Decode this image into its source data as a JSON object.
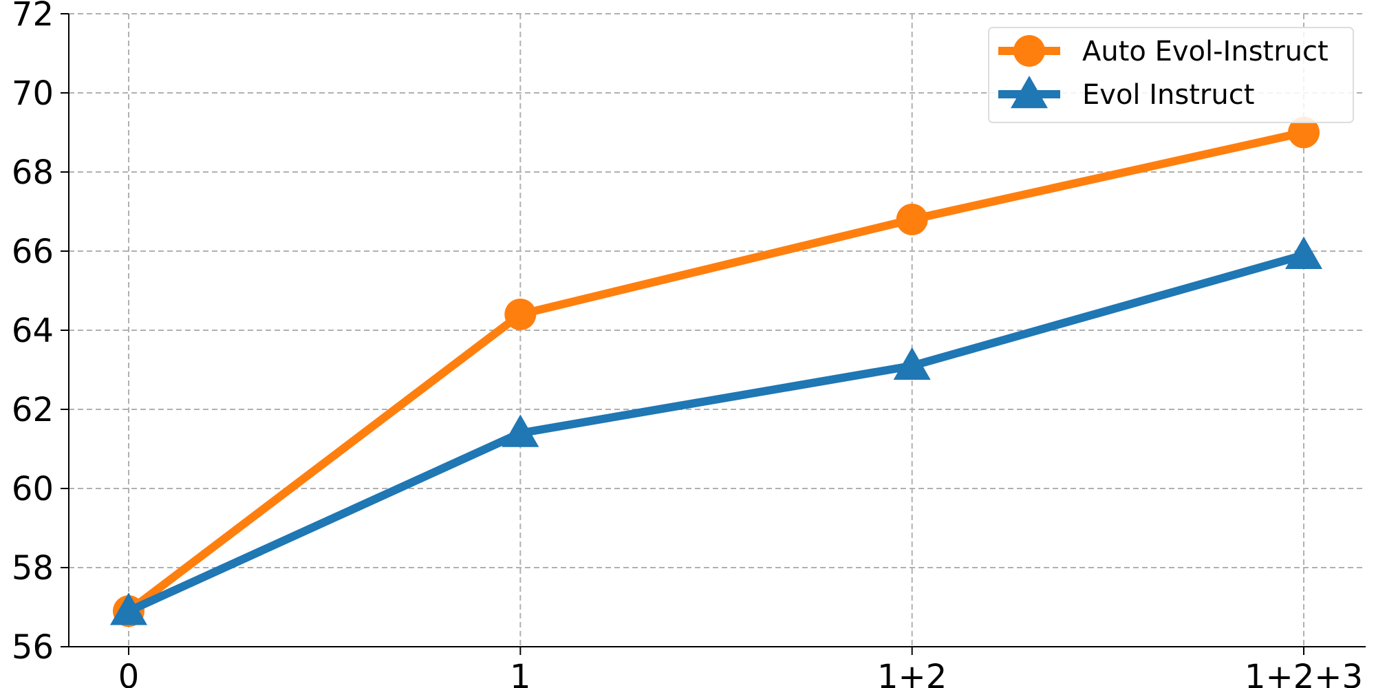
{
  "chart_data": {
    "type": "line",
    "title": "",
    "xlabel": "",
    "ylabel": "",
    "categories": [
      "0",
      "1",
      "1+2",
      "1+2+3"
    ],
    "ylim": [
      56,
      72
    ],
    "yticks": [
      56,
      58,
      60,
      62,
      64,
      66,
      68,
      70,
      72
    ],
    "grid": true,
    "grid_style": "dashed",
    "legend_position": "top-right",
    "series": [
      {
        "name": "Auto Evol-Instruct",
        "values": [
          56.9,
          64.4,
          66.8,
          69.0
        ],
        "color": "#ff7f0e",
        "marker": "circle"
      },
      {
        "name": "Evol Instruct",
        "values": [
          56.9,
          61.4,
          63.1,
          65.9
        ],
        "color": "#1f77b4",
        "marker": "triangle"
      }
    ]
  }
}
